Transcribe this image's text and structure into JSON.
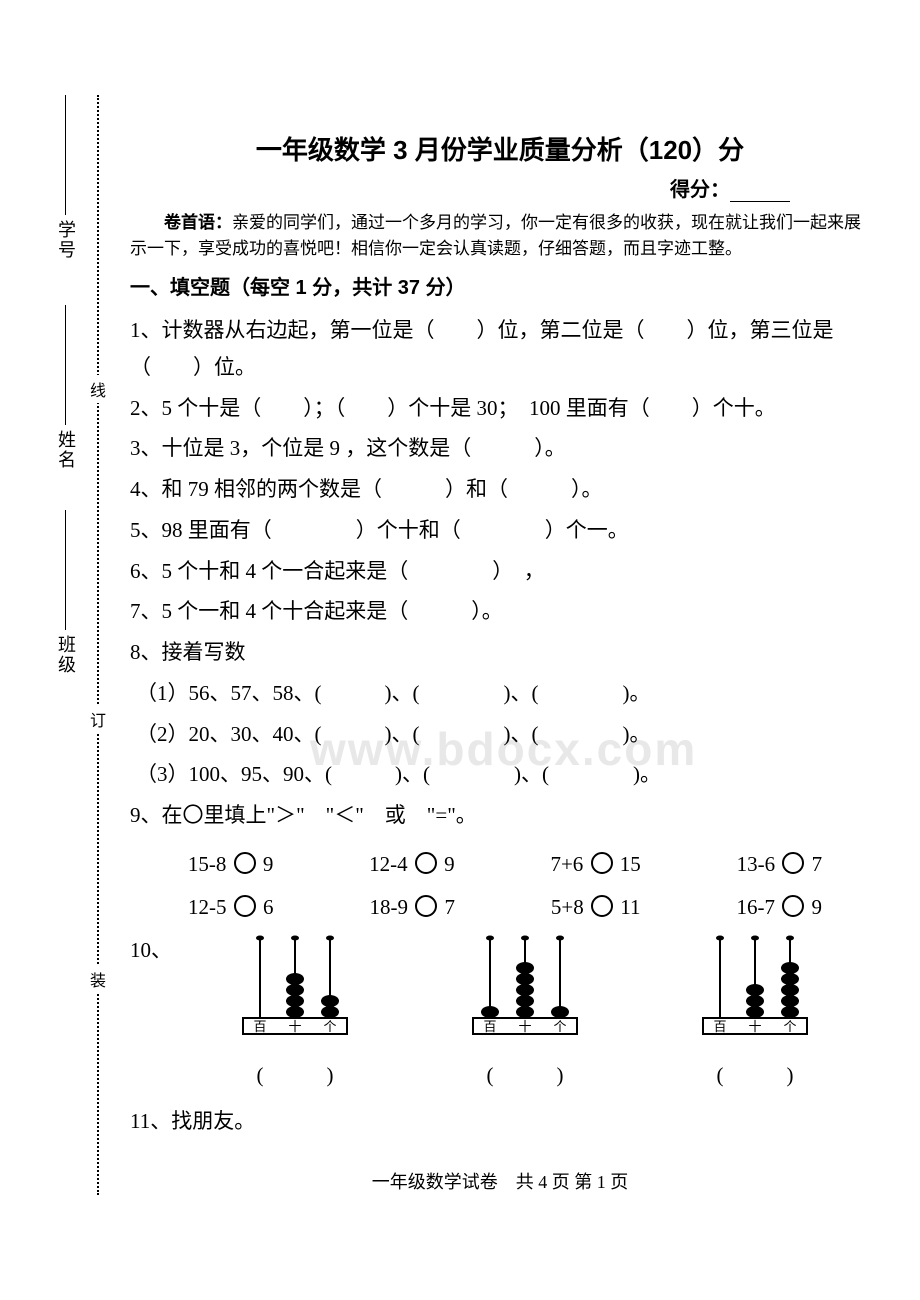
{
  "title": "一年级数学 3 月份学业质量分析（120）分",
  "score_label": "得分：",
  "preface_label": "卷首语：",
  "preface_text": "亲爱的同学们，通过一个多月的学习，你一定有很多的收获，现在就让我们一起来展示一下，享受成功的喜悦吧！相信你一定会认真读题，仔细答题，而且字迹工整。",
  "section1_header": "一、填空题（每空 1 分，共计 37 分）",
  "q1": "1、计数器从右边起，第一位是（　　）位，第二位是（　　）位，第三位是（　　）位。",
  "q2": "2、5 个十是（　　）；（　　）个十是 30；　100 里面有（　　）个十。",
  "q3": "3、十位是 3，个位是 9 ，这个数是（　　　）。",
  "q4": "4、和 79 相邻的两个数是（　　　）和（　　　）。",
  "q5": "5、98 里面有（　　　　）个十和（　　　　）个一。",
  "q6": "6、5 个十和 4 个一合起来是（　　　　）　，",
  "q7": "7、5 个一和 4 个十合起来是（　　　）。",
  "q8_head": "8、接着写数",
  "q8_1": "（1）56、57、58、(　　　)、(　　　　)、(　　　　)。",
  "q8_2": "（2）20、30、40、(　　　)、(　　　　)、(　　　　)。",
  "q8_3": "（3）100、95、90、(　　　)、(　　　　)、(　　　　)。",
  "q9_head": "9、在〇里填上\"＞\"　\"＜\"　或　\"=\"。",
  "q9_items_row1": [
    "15-8 　 9",
    "12-4 　 9",
    "7+6 　 15",
    "13-6 　 7"
  ],
  "q9_items_row2": [
    "12-5 　 6",
    "18-9 　 7",
    "5+8 　 11",
    "16-7 　 9"
  ],
  "q10_label": "10、",
  "q11": "11、找朋友。",
  "abacus": {
    "labels": [
      "百",
      "十",
      "个"
    ],
    "items": [
      {
        "beads": [
          0,
          4,
          2
        ]
      },
      {
        "beads": [
          1,
          5,
          1
        ]
      },
      {
        "beads": [
          0,
          3,
          5
        ]
      }
    ],
    "answer_blank": "(　　　)"
  },
  "side": {
    "labels": [
      "学号",
      "姓名",
      "班级"
    ],
    "chars": [
      "线",
      "订",
      "装"
    ]
  },
  "watermark": "www.bdocx.com",
  "footer": "一年级数学试卷　共 4 页 第 1 页",
  "colors": {
    "text": "#000000",
    "bg": "#ffffff",
    "watermark": "#e8e8e8"
  }
}
